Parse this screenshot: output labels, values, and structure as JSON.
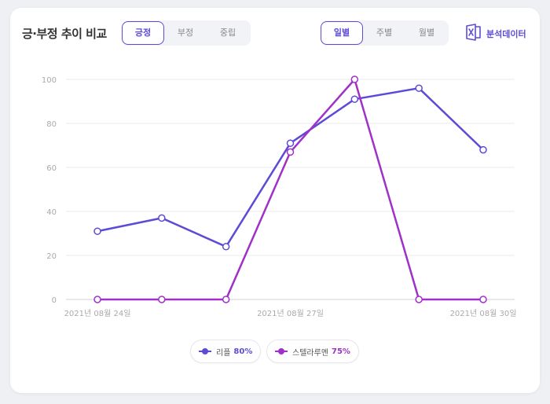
{
  "title": "긍·부정 추이 비교",
  "sentiment_tabs": [
    "긍정",
    "부정",
    "중립"
  ],
  "period_tabs": [
    "일별",
    "주별",
    "월별"
  ],
  "analysis_label": "분석데이터",
  "colors": {
    "accent": "#5b4bd6",
    "series1": "#5b4bd6",
    "series2": "#a031c8"
  },
  "legend": [
    {
      "name": "리플",
      "pct": "80%"
    },
    {
      "name": "스텔라루멘",
      "pct": "75%"
    }
  ],
  "chart_data": {
    "type": "line",
    "x": [
      "2021년 08월 24일",
      "2021년 08월 25일",
      "2021년 08월 26일",
      "2021년 08월 27일",
      "2021년 08월 28일",
      "2021년 08월 29일",
      "2021년 08월 30일"
    ],
    "x_tick_labels": [
      "2021년 08월 24일",
      "2021년 08월 27일",
      "2021년 08월 30일"
    ],
    "y_ticks": [
      "0",
      "20",
      "40",
      "60",
      "80",
      "100"
    ],
    "ylim": [
      0,
      100
    ],
    "grid": true,
    "series": [
      {
        "name": "리플",
        "values": [
          31,
          37,
          24,
          71,
          91,
          96,
          68
        ],
        "color": "#5b4bd6"
      },
      {
        "name": "스텔라루멘",
        "values": [
          0,
          0,
          0,
          67,
          100,
          0,
          0
        ],
        "color": "#a031c8"
      }
    ]
  }
}
